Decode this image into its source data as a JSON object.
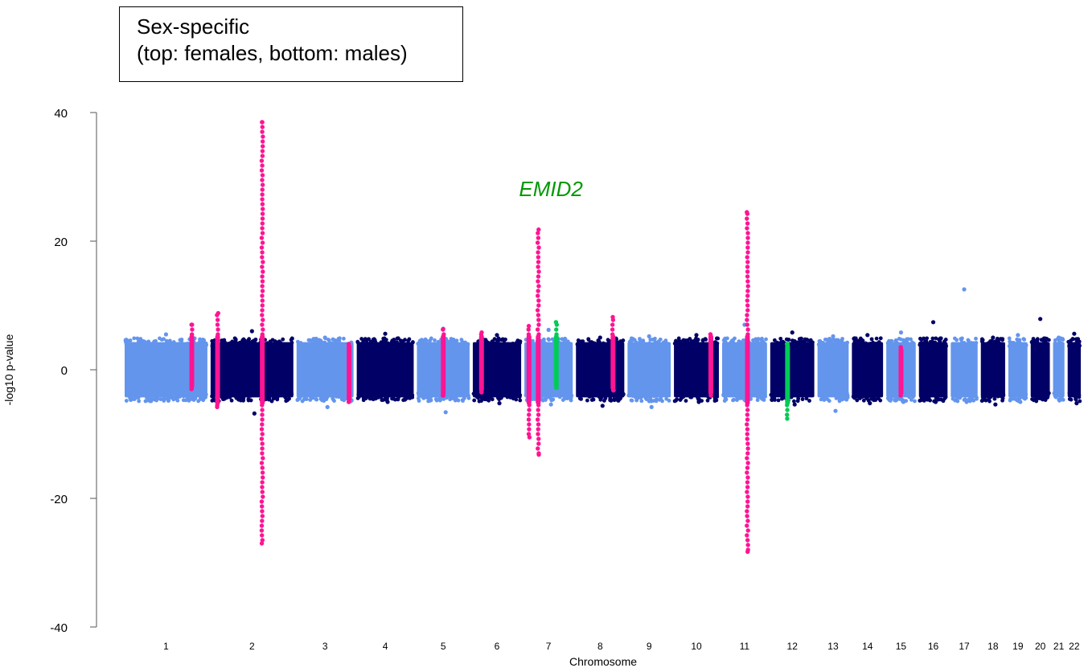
{
  "legend_box": {
    "line1": "Sex-specific",
    "line2": "(top: females, bottom: males)"
  },
  "colors": {
    "light": "#6495ED",
    "dark": "#000066",
    "highlight_pink": "#FF1493",
    "highlight_green": "#00CC55",
    "annotation_green": "#009900"
  },
  "chart_data": {
    "type": "scatter",
    "subtype": "mirrored manhattan plot",
    "xlabel": "Chromosome",
    "ylabel": "-log10 p-value",
    "ylim": [
      -40,
      40
    ],
    "yticks": [
      -40,
      -20,
      0,
      20,
      40
    ],
    "grid": false,
    "chromosomes": [
      {
        "label": "1",
        "color": "light",
        "top": 5.5,
        "bottom": -4.8
      },
      {
        "label": "2",
        "color": "dark",
        "top": 6.0,
        "bottom": -6.8
      },
      {
        "label": "3",
        "color": "light",
        "top": 5.0,
        "bottom": -5.8
      },
      {
        "label": "4",
        "color": "dark",
        "top": 5.6,
        "bottom": -5.0
      },
      {
        "label": "5",
        "color": "light",
        "top": 6.4,
        "bottom": -6.6
      },
      {
        "label": "6",
        "color": "dark",
        "top": 5.4,
        "bottom": -5.2
      },
      {
        "label": "7",
        "color": "light",
        "top": 6.2,
        "bottom": -5.4
      },
      {
        "label": "8",
        "color": "dark",
        "top": 5.0,
        "bottom": -5.6
      },
      {
        "label": "9",
        "color": "light",
        "top": 5.2,
        "bottom": -5.8
      },
      {
        "label": "10",
        "color": "dark",
        "top": 5.4,
        "bottom": -5.0
      },
      {
        "label": "11",
        "color": "light",
        "top": 7.0,
        "bottom": -5.0
      },
      {
        "label": "12",
        "color": "dark",
        "top": 5.8,
        "bottom": -5.4
      },
      {
        "label": "13",
        "color": "light",
        "top": 5.2,
        "bottom": -6.4
      },
      {
        "label": "14",
        "color": "dark",
        "top": 5.4,
        "bottom": -5.2
      },
      {
        "label": "15",
        "color": "light",
        "top": 5.8,
        "bottom": -5.0
      },
      {
        "label": "16",
        "color": "dark",
        "top": 7.4,
        "bottom": -5.0
      },
      {
        "label": "17",
        "color": "light",
        "top": 12.5,
        "bottom": -5.0
      },
      {
        "label": "18",
        "color": "dark",
        "top": 5.0,
        "bottom": -5.4
      },
      {
        "label": "19",
        "color": "light",
        "top": 5.4,
        "bottom": -5.0
      },
      {
        "label": "20",
        "color": "dark",
        "top": 7.9,
        "bottom": -4.6
      },
      {
        "label": "21",
        "color": "light",
        "top": 5.0,
        "bottom": -4.6
      },
      {
        "label": "22",
        "color": "dark",
        "top": 5.6,
        "bottom": -5.2
      }
    ],
    "highlighted_loci": [
      {
        "chromosome": "1",
        "pos": 0.8,
        "color": "highlight_pink",
        "top": 7.0,
        "bottom": -3.0
      },
      {
        "chromosome": "2",
        "pos": 0.1,
        "color": "highlight_pink",
        "top": 8.8,
        "bottom": -5.8
      },
      {
        "chromosome": "2",
        "pos": 0.62,
        "color": "highlight_pink",
        "top": 38.5,
        "bottom": -27.0
      },
      {
        "chromosome": "3",
        "pos": 0.9,
        "color": "highlight_pink",
        "top": 4.0,
        "bottom": -5.0
      },
      {
        "chromosome": "5",
        "pos": 0.5,
        "color": "highlight_pink",
        "top": 6.3,
        "bottom": -4.0
      },
      {
        "chromosome": "6",
        "pos": 0.2,
        "color": "highlight_pink",
        "top": 5.8,
        "bottom": -3.5
      },
      {
        "chromosome": "7",
        "pos": 0.12,
        "color": "highlight_pink",
        "top": 6.8,
        "bottom": -10.5
      },
      {
        "chromosome": "7",
        "pos": 0.3,
        "color": "highlight_pink",
        "top": 21.8,
        "bottom": -13.2
      },
      {
        "chromosome": "7",
        "pos": 0.65,
        "color": "highlight_green",
        "top": 7.4,
        "bottom": -2.8
      },
      {
        "chromosome": "8",
        "pos": 0.75,
        "color": "highlight_pink",
        "top": 8.2,
        "bottom": -3.2
      },
      {
        "chromosome": "10",
        "pos": 0.8,
        "color": "highlight_pink",
        "top": 5.5,
        "bottom": -4.0
      },
      {
        "chromosome": "11",
        "pos": 0.56,
        "color": "highlight_pink",
        "top": 24.5,
        "bottom": -28.3
      },
      {
        "chromosome": "12",
        "pos": 0.4,
        "color": "highlight_green",
        "top": 4.0,
        "bottom": -7.6
      },
      {
        "chromosome": "15",
        "pos": 0.5,
        "color": "highlight_pink",
        "top": 3.5,
        "bottom": -4.0
      }
    ],
    "annotations": [
      {
        "text": "EMID2",
        "chromosome": "7",
        "y": 27,
        "color": "annotation_green"
      }
    ]
  }
}
